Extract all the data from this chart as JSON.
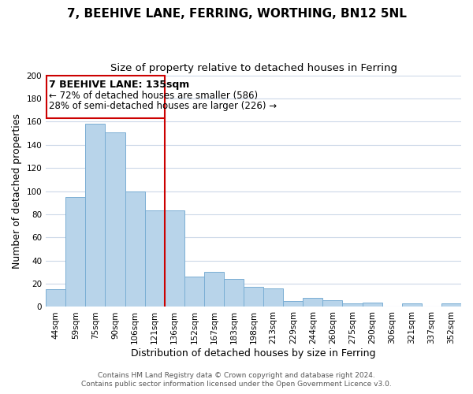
{
  "title": "7, BEEHIVE LANE, FERRING, WORTHING, BN12 5NL",
  "subtitle": "Size of property relative to detached houses in Ferring",
  "xlabel": "Distribution of detached houses by size in Ferring",
  "ylabel": "Number of detached properties",
  "categories": [
    "44sqm",
    "59sqm",
    "75sqm",
    "90sqm",
    "106sqm",
    "121sqm",
    "136sqm",
    "152sqm",
    "167sqm",
    "183sqm",
    "198sqm",
    "213sqm",
    "229sqm",
    "244sqm",
    "260sqm",
    "275sqm",
    "290sqm",
    "306sqm",
    "321sqm",
    "337sqm",
    "352sqm"
  ],
  "values": [
    15,
    95,
    158,
    151,
    100,
    83,
    83,
    26,
    30,
    24,
    17,
    16,
    5,
    8,
    6,
    3,
    4,
    0,
    3,
    0,
    3
  ],
  "bar_color": "#b8d4ea",
  "bar_edge_color": "#7aaed4",
  "vline_x_index": 6,
  "vline_color": "#cc0000",
  "ylim": [
    0,
    200
  ],
  "yticks": [
    0,
    20,
    40,
    60,
    80,
    100,
    120,
    140,
    160,
    180,
    200
  ],
  "annotation_title": "7 BEEHIVE LANE: 135sqm",
  "annotation_line1": "← 72% of detached houses are smaller (586)",
  "annotation_line2": "28% of semi-detached houses are larger (226) →",
  "annotation_box_color": "#ffffff",
  "annotation_box_edge": "#cc0000",
  "footer1": "Contains HM Land Registry data © Crown copyright and database right 2024.",
  "footer2": "Contains public sector information licensed under the Open Government Licence v3.0.",
  "title_fontsize": 11,
  "subtitle_fontsize": 9.5,
  "xlabel_fontsize": 9,
  "ylabel_fontsize": 9,
  "tick_fontsize": 7.5,
  "annotation_title_fontsize": 9,
  "annotation_fontsize": 8.5,
  "footer_fontsize": 6.5,
  "background_color": "#ffffff",
  "grid_color": "#ccd8e8"
}
